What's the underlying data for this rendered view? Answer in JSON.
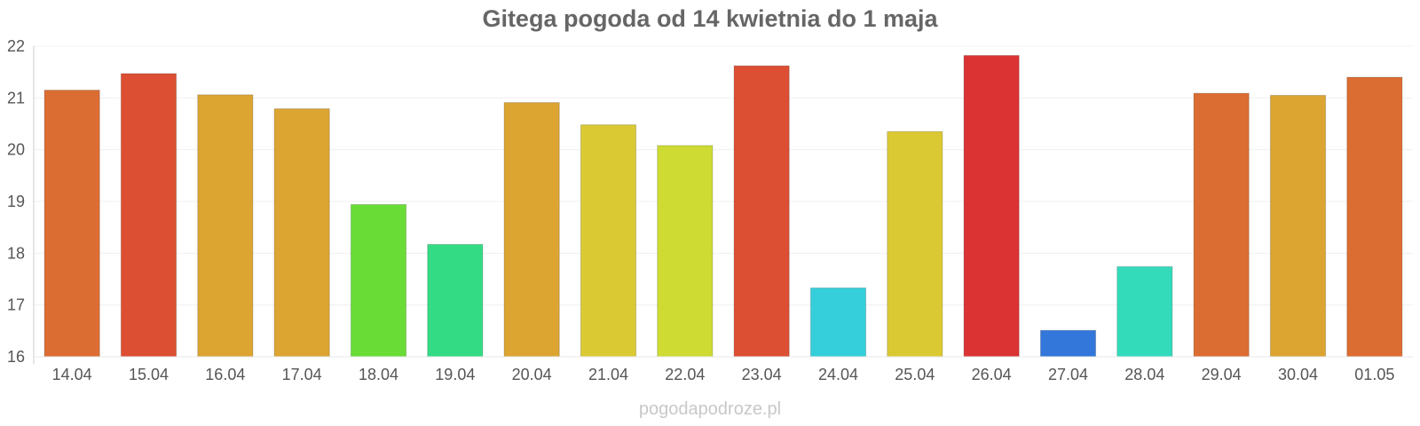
{
  "chart_data": {
    "type": "bar",
    "title": "Gitega pogoda od 14 kwietnia do 1 maja",
    "categories": [
      "14.04",
      "15.04",
      "16.04",
      "17.04",
      "18.04",
      "19.04",
      "20.04",
      "21.04",
      "22.04",
      "23.04",
      "24.04",
      "25.04",
      "26.04",
      "27.04",
      "28.04",
      "29.04",
      "30.04",
      "01.05"
    ],
    "values": [
      21.15,
      21.47,
      21.06,
      20.79,
      18.94,
      18.17,
      20.91,
      20.48,
      20.08,
      21.62,
      17.33,
      20.35,
      21.82,
      16.51,
      17.74,
      21.09,
      21.05,
      21.4
    ],
    "colors": [
      "#dc6d32",
      "#dc4f32",
      "#dca532",
      "#dca532",
      "#69dc36",
      "#33db85",
      "#dca532",
      "#dbc933",
      "#cddb33",
      "#dc4f32",
      "#35cfdb",
      "#dbc933",
      "#db3333",
      "#3377db",
      "#33dbbb",
      "#dc6d32",
      "#dca532",
      "#dc6d32"
    ],
    "ylim": [
      16,
      22
    ],
    "yticks": [
      16,
      17,
      18,
      19,
      20,
      21,
      22
    ],
    "grid": true,
    "xlabel": "",
    "ylabel": ""
  },
  "footer": {
    "credit": "pogodapodroze.pl"
  }
}
